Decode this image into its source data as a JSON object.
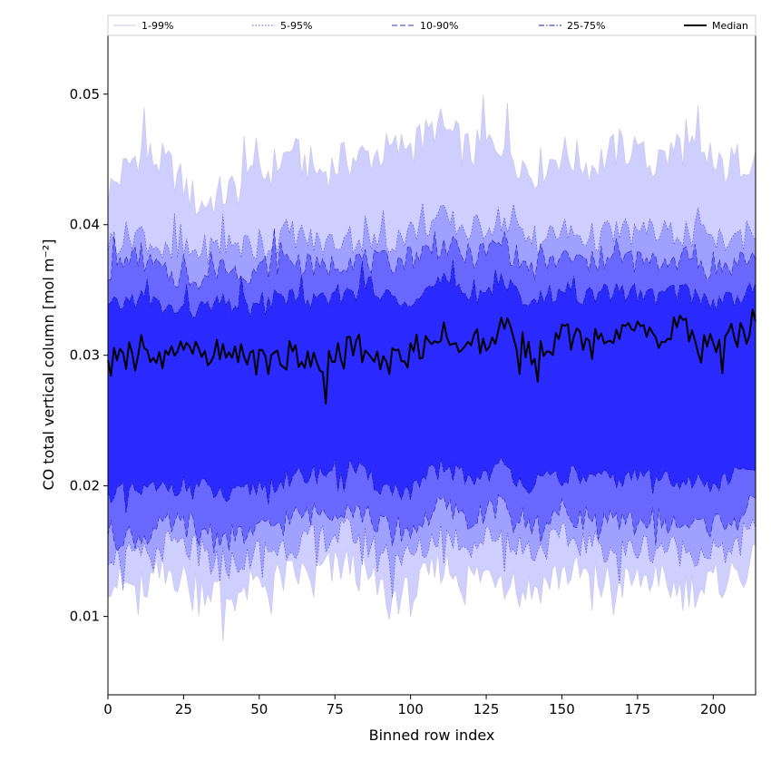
{
  "chart_data": {
    "type": "area",
    "title": "",
    "xlabel": "Binned row index",
    "ylabel": "CO total vertical column [mol m⁻²]",
    "xlim": [
      0,
      214
    ],
    "ylim": [
      0.004,
      0.0545
    ],
    "xticks": [
      0,
      25,
      50,
      75,
      100,
      125,
      150,
      175,
      200
    ],
    "yticks": [
      0.01,
      0.02,
      0.03,
      0.04,
      0.05
    ],
    "ytick_labels": [
      "0.01",
      "0.02",
      "0.03",
      "0.04",
      "0.05"
    ],
    "grid": false,
    "legend_position": "top",
    "x_knots": [
      0,
      10,
      20,
      30,
      40,
      50,
      60,
      70,
      80,
      90,
      100,
      110,
      120,
      130,
      140,
      150,
      160,
      170,
      180,
      190,
      200,
      214
    ],
    "bands": [
      {
        "name": "1-99%",
        "fill": "#cfcfff",
        "line_style": "solid",
        "line_color": "#c8c8e8",
        "upper": [
          0.0425,
          0.0455,
          0.0445,
          0.0415,
          0.0425,
          0.0435,
          0.0455,
          0.044,
          0.045,
          0.0455,
          0.046,
          0.0475,
          0.0455,
          0.0465,
          0.044,
          0.0455,
          0.0445,
          0.046,
          0.0445,
          0.046,
          0.044,
          0.0455
        ],
        "lower": [
          0.013,
          0.012,
          0.0135,
          0.0125,
          0.0115,
          0.0125,
          0.013,
          0.0135,
          0.014,
          0.012,
          0.0115,
          0.014,
          0.013,
          0.0135,
          0.012,
          0.0135,
          0.013,
          0.0125,
          0.013,
          0.012,
          0.0125,
          0.014
        ]
      },
      {
        "name": "5-95%",
        "fill": "#a0a0ff",
        "line_style": "dotted",
        "line_color": "#5050c8",
        "upper": [
          0.0385,
          0.0395,
          0.0375,
          0.038,
          0.0385,
          0.038,
          0.0395,
          0.0385,
          0.039,
          0.0385,
          0.0395,
          0.0405,
          0.0395,
          0.0405,
          0.0385,
          0.0395,
          0.039,
          0.0395,
          0.039,
          0.0395,
          0.0385,
          0.0395
        ],
        "lower": [
          0.015,
          0.0145,
          0.0155,
          0.015,
          0.014,
          0.015,
          0.0155,
          0.016,
          0.0165,
          0.015,
          0.0145,
          0.0165,
          0.0155,
          0.0165,
          0.015,
          0.016,
          0.0155,
          0.015,
          0.0155,
          0.015,
          0.015,
          0.0165
        ]
      },
      {
        "name": "10-90%",
        "fill": "#6868ff",
        "line_style": "dashed",
        "line_color": "#3030b8",
        "upper": [
          0.0365,
          0.0375,
          0.036,
          0.036,
          0.0365,
          0.0365,
          0.0375,
          0.0365,
          0.0375,
          0.037,
          0.0375,
          0.0385,
          0.0375,
          0.0385,
          0.0365,
          0.0375,
          0.037,
          0.0375,
          0.037,
          0.0375,
          0.0365,
          0.0375
        ],
        "lower": [
          0.0165,
          0.016,
          0.017,
          0.017,
          0.016,
          0.0165,
          0.0175,
          0.018,
          0.0185,
          0.017,
          0.0165,
          0.0185,
          0.0175,
          0.0185,
          0.017,
          0.018,
          0.0175,
          0.017,
          0.0175,
          0.017,
          0.017,
          0.0185
        ]
      },
      {
        "name": "25-75%",
        "fill": "#2a2aff",
        "line_style": "dashdot",
        "line_color": "#1a1a9c",
        "upper": [
          0.0335,
          0.0345,
          0.0335,
          0.0335,
          0.034,
          0.0335,
          0.0345,
          0.034,
          0.035,
          0.0345,
          0.0345,
          0.0355,
          0.0345,
          0.0355,
          0.034,
          0.035,
          0.0345,
          0.035,
          0.0345,
          0.035,
          0.034,
          0.035
        ],
        "lower": [
          0.0195,
          0.0195,
          0.02,
          0.02,
          0.019,
          0.02,
          0.0205,
          0.021,
          0.0215,
          0.02,
          0.0195,
          0.0215,
          0.0205,
          0.0215,
          0.02,
          0.021,
          0.0205,
          0.0205,
          0.021,
          0.0205,
          0.02,
          0.0215
        ]
      }
    ],
    "median": {
      "name": "Median",
      "color": "#000000",
      "values": [
        0.0295,
        0.0305,
        0.03,
        0.0305,
        0.03,
        0.0295,
        0.03,
        0.029,
        0.031,
        0.0295,
        0.03,
        0.032,
        0.0305,
        0.032,
        0.0305,
        0.0315,
        0.031,
        0.032,
        0.0315,
        0.032,
        0.0305,
        0.0325
      ]
    },
    "legend": [
      "1-99%",
      "5-95%",
      "10-90%",
      "25-75%",
      "Median"
    ]
  }
}
